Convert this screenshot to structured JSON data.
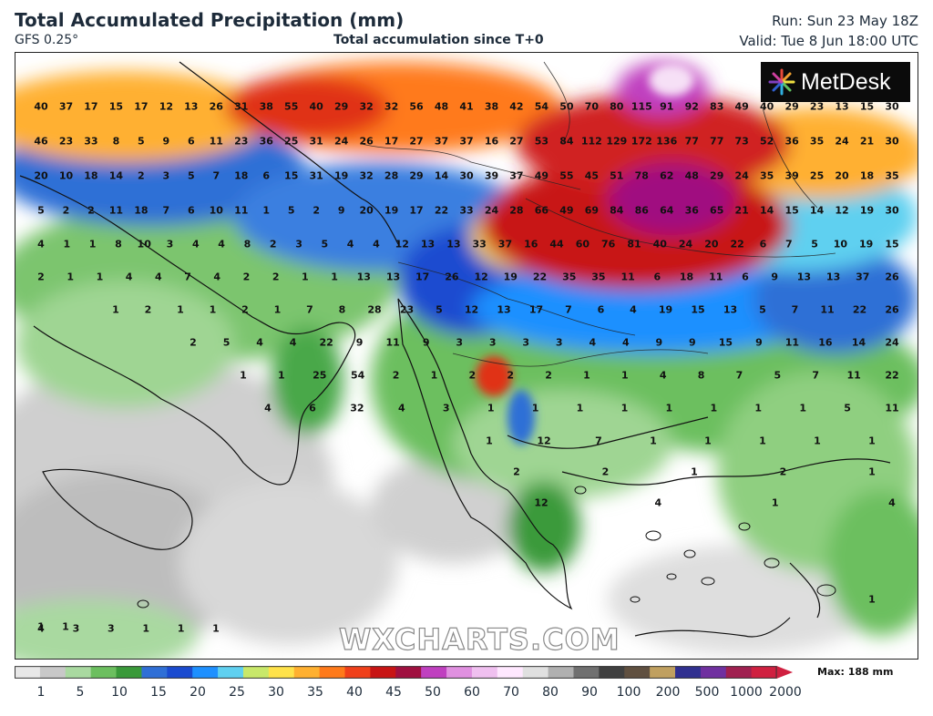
{
  "header": {
    "title": "Total Accumulated Precipitation (mm)",
    "model": "GFS 0.25°",
    "subtitle": "Total accumulation since T+0",
    "run": "Run: Sun 23 May 18Z",
    "valid": "Valid: Tue 8 Jun 18:00 UTC"
  },
  "logo": {
    "text": "MetDesk",
    "icon": "starburst-icon"
  },
  "watermark": "WXCHARTS.COM",
  "legend": {
    "max_label": "Max: 188 mm",
    "ticks": [
      "1",
      "5",
      "10",
      "15",
      "20",
      "25",
      "30",
      "35",
      "40",
      "45",
      "50",
      "60",
      "70",
      "80",
      "90",
      "100",
      "200",
      "500",
      "1000",
      "2000"
    ],
    "colors": [
      "#e8e8e8",
      "#c8c8c8",
      "#a9d9a0",
      "#6cbf5f",
      "#3a9a3a",
      "#2f6fd6",
      "#1a4bd0",
      "#1e90ff",
      "#5fd0f0",
      "#c8e86a",
      "#ffe24a",
      "#ffb030",
      "#ff7a1a",
      "#f0401a",
      "#c81414",
      "#a01040",
      "#c040c0",
      "#e090e0",
      "#f0c0f0",
      "#ffe8ff",
      "#e0e0e0",
      "#b0b0b0",
      "#707070",
      "#404040",
      "#605040",
      "#c0a060",
      "#303090",
      "#7030a0",
      "#a02050",
      "#d02040"
    ]
  },
  "map_labels": [
    [
      "40",
      "37",
      "17",
      "15",
      "17",
      "12",
      "13",
      "26",
      "31",
      "38",
      "55",
      "40",
      "29",
      "32",
      "32",
      "56",
      "48",
      "41",
      "38",
      "42",
      "54",
      "50",
      "70",
      "80",
      "115",
      "91",
      "92",
      "83",
      "49",
      "40",
      "29",
      "23",
      "13",
      "15",
      "30"
    ],
    [
      "46",
      "23",
      "33",
      "8",
      "5",
      "9",
      "6",
      "11",
      "23",
      "36",
      "25",
      "31",
      "24",
      "26",
      "17",
      "27",
      "37",
      "37",
      "16",
      "27",
      "53",
      "84",
      "112",
      "129",
      "172",
      "136",
      "77",
      "77",
      "73",
      "52",
      "36",
      "35",
      "24",
      "21",
      "30"
    ],
    [
      "20",
      "10",
      "18",
      "14",
      "2",
      "3",
      "5",
      "7",
      "18",
      "6",
      "15",
      "31",
      "19",
      "32",
      "28",
      "29",
      "14",
      "30",
      "39",
      "37",
      "49",
      "55",
      "45",
      "51",
      "78",
      "62",
      "48",
      "29",
      "24",
      "35",
      "39",
      "25",
      "20",
      "18",
      "35"
    ],
    [
      "5",
      "2",
      "2",
      "11",
      "18",
      "7",
      "6",
      "10",
      "11",
      "1",
      "5",
      "2",
      "9",
      "20",
      "19",
      "17",
      "22",
      "33",
      "24",
      "28",
      "66",
      "49",
      "69",
      "84",
      "86",
      "64",
      "36",
      "65",
      "21",
      "14",
      "15",
      "14",
      "12",
      "19",
      "30"
    ],
    [
      "4",
      "1",
      "1",
      "8",
      "10",
      "3",
      "4",
      "4",
      "8",
      "2",
      "3",
      "5",
      "4",
      "4",
      "12",
      "13",
      "13",
      "33",
      "37",
      "16",
      "44",
      "60",
      "76",
      "81",
      "40",
      "24",
      "20",
      "22",
      "6",
      "7",
      "5",
      "10",
      "19",
      "15"
    ],
    [
      "2",
      "1",
      "1",
      "4",
      "4",
      "7",
      "4",
      "2",
      "2",
      "1",
      "1",
      "13",
      "13",
      "17",
      "26",
      "12",
      "19",
      "22",
      "35",
      "35",
      "11",
      "6",
      "18",
      "11",
      "6",
      "9",
      "13",
      "13",
      "37",
      "26"
    ],
    [
      "1",
      "2",
      "1",
      "1",
      "2",
      "1",
      "7",
      "8",
      "28",
      "23",
      "5",
      "12",
      "13",
      "17",
      "7",
      "6",
      "4",
      "19",
      "15",
      "13",
      "5",
      "7",
      "11",
      "22",
      "26"
    ],
    [
      "2",
      "5",
      "4",
      "4",
      "22",
      "9",
      "11",
      "9",
      "3",
      "3",
      "3",
      "3",
      "4",
      "4",
      "9",
      "9",
      "15",
      "9",
      "11",
      "16",
      "14",
      "24"
    ],
    [
      "1",
      "1",
      "25",
      "54",
      "2",
      "1",
      "2",
      "2",
      "2",
      "1",
      "1",
      "4",
      "8",
      "7",
      "5",
      "7",
      "11",
      "22"
    ],
    [
      "4",
      "6",
      "32",
      "4",
      "3",
      "1",
      "1",
      "1",
      "1",
      "1",
      "1",
      "1",
      "1",
      "5",
      "11"
    ],
    [
      "1",
      "12",
      "7",
      "1",
      "1",
      "1",
      "1",
      "1"
    ],
    [
      "2",
      "2",
      "1",
      "2",
      "1"
    ],
    [
      "12",
      "4",
      "1",
      "4"
    ],
    [
      "1"
    ],
    [
      "1",
      "1"
    ],
    [
      "4",
      "3",
      "3",
      "1",
      "1",
      "1"
    ]
  ]
}
